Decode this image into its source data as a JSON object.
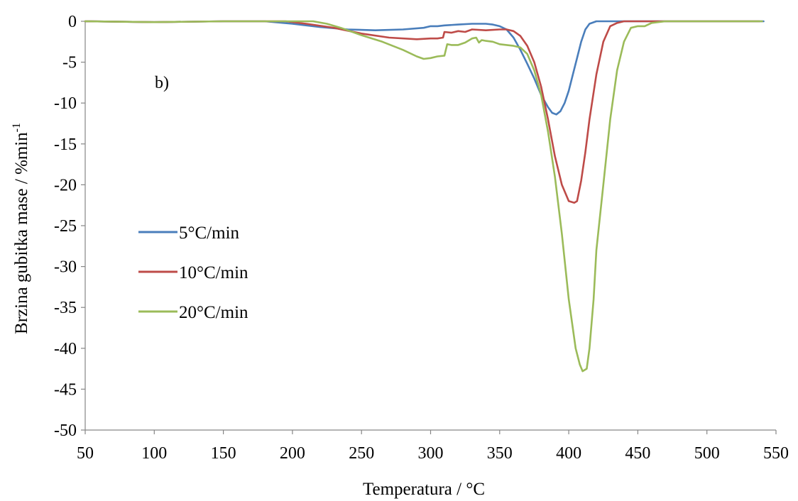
{
  "chart_data": {
    "type": "line",
    "title": "",
    "xlabel": "Temperatura / °C",
    "ylabel_main": "Brzina gubitka mase / %min",
    "ylabel_sup": "-1",
    "annotation": "b)",
    "xlim": [
      50,
      550
    ],
    "ylim": [
      -50,
      0
    ],
    "x_ticks": [
      50,
      100,
      150,
      200,
      250,
      300,
      350,
      400,
      450,
      500,
      550
    ],
    "y_ticks": [
      0,
      -5,
      -10,
      -15,
      -20,
      -25,
      -30,
      -35,
      -40,
      -45,
      -50
    ],
    "grid": false,
    "legend_position": "left-center",
    "series": [
      {
        "name": "5°C/min",
        "color": "#4a7ebb",
        "x": [
          50,
          100,
          150,
          180,
          200,
          220,
          240,
          260,
          280,
          295,
          300,
          305,
          310,
          320,
          330,
          340,
          345,
          350,
          355,
          360,
          365,
          370,
          375,
          380,
          385,
          388,
          391,
          394,
          397,
          400,
          403,
          406,
          409,
          412,
          415,
          420,
          430,
          450,
          500,
          540,
          541
        ],
        "y": [
          0,
          -0.1,
          0,
          0,
          -0.3,
          -0.7,
          -1.0,
          -1.1,
          -1.0,
          -0.8,
          -0.6,
          -0.6,
          -0.5,
          -0.4,
          -0.3,
          -0.3,
          -0.4,
          -0.6,
          -1.0,
          -2.0,
          -3.5,
          -5.2,
          -7.0,
          -9.0,
          -10.5,
          -11.2,
          -11.4,
          -11.0,
          -10.0,
          -8.5,
          -6.5,
          -4.5,
          -2.5,
          -1.0,
          -0.3,
          0,
          0,
          0,
          0,
          0,
          0
        ]
      },
      {
        "name": "10°C/min",
        "color": "#be4b48",
        "x": [
          50,
          100,
          150,
          195,
          210,
          230,
          250,
          270,
          290,
          300,
          305,
          309,
          310,
          315,
          320,
          325,
          330,
          340,
          350,
          355,
          360,
          365,
          370,
          375,
          380,
          385,
          390,
          395,
          400,
          404,
          406,
          409,
          412,
          415,
          420,
          425,
          430,
          435,
          440,
          450,
          500,
          538
        ],
        "y": [
          0,
          -0.1,
          0,
          0,
          -0.3,
          -0.8,
          -1.5,
          -2.0,
          -2.2,
          -2.1,
          -2.1,
          -2.0,
          -1.3,
          -1.4,
          -1.2,
          -1.3,
          -1.0,
          -1.1,
          -1.0,
          -1.0,
          -1.2,
          -1.8,
          -3.0,
          -5.0,
          -8.0,
          -12.0,
          -16.5,
          -20.0,
          -22.0,
          -22.2,
          -22.0,
          -19.5,
          -16.0,
          -12.0,
          -6.5,
          -2.5,
          -0.6,
          -0.2,
          0,
          0,
          0,
          0
        ]
      },
      {
        "name": "20°C/min",
        "color": "#9bbb59",
        "x": [
          50,
          100,
          150,
          200,
          215,
          225,
          235,
          250,
          265,
          280,
          290,
          295,
          300,
          305,
          310,
          312,
          315,
          320,
          325,
          330,
          333,
          335,
          337,
          340,
          345,
          350,
          355,
          360,
          365,
          370,
          375,
          380,
          385,
          390,
          395,
          400,
          405,
          408,
          410,
          413,
          415,
          418,
          420,
          425,
          430,
          435,
          440,
          445,
          450,
          455,
          460,
          470,
          500,
          540
        ],
        "y": [
          0,
          -0.1,
          0,
          0,
          0,
          -0.3,
          -0.8,
          -1.7,
          -2.5,
          -3.5,
          -4.3,
          -4.6,
          -4.5,
          -4.3,
          -4.2,
          -2.8,
          -2.9,
          -2.9,
          -2.6,
          -2.1,
          -2.0,
          -2.6,
          -2.3,
          -2.4,
          -2.5,
          -2.8,
          -2.9,
          -3.0,
          -3.2,
          -4.0,
          -6.0,
          -9.0,
          -13.5,
          -19.0,
          -26.0,
          -34.0,
          -40.0,
          -42.0,
          -42.8,
          -42.5,
          -40.0,
          -34.0,
          -28.0,
          -20.0,
          -12.0,
          -6.0,
          -2.5,
          -0.8,
          -0.6,
          -0.6,
          -0.2,
          0,
          0,
          0
        ]
      }
    ]
  }
}
